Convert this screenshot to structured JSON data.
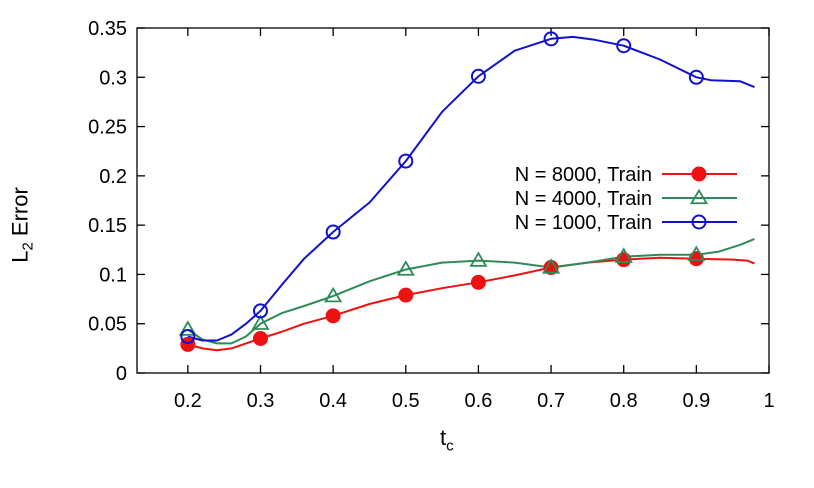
{
  "chart_data": {
    "type": "line",
    "xlabel": {
      "main": "t",
      "sub": "c"
    },
    "ylabel": {
      "main": "L",
      "sub": "2",
      "rest": " Error"
    },
    "xlim": [
      0.13,
      1.0
    ],
    "ylim": [
      0,
      0.35
    ],
    "xticks": [
      0.2,
      0.3,
      0.4,
      0.5,
      0.6,
      0.7,
      0.8,
      0.9,
      1
    ],
    "xtick_labels": [
      "0.2",
      "0.3",
      "0.4",
      "0.5",
      "0.6",
      "0.7",
      "0.8",
      "0.9",
      "1"
    ],
    "yticks": [
      0,
      0.05,
      0.1,
      0.15,
      0.2,
      0.25,
      0.3,
      0.35
    ],
    "ytick_labels": [
      "0",
      "0.05",
      "0.1",
      "0.15",
      "0.2",
      "0.25",
      "0.3",
      "0.35"
    ],
    "grid": false,
    "legend_position": "right",
    "series": [
      {
        "name": "N = 8000, Train",
        "color": "#ee1111",
        "marker": "filled-circle",
        "points": [
          [
            0.2,
            0.029
          ],
          [
            0.3,
            0.035
          ],
          [
            0.4,
            0.058
          ],
          [
            0.5,
            0.079
          ],
          [
            0.6,
            0.092
          ],
          [
            0.7,
            0.107
          ],
          [
            0.8,
            0.115
          ],
          [
            0.9,
            0.116
          ]
        ],
        "curve": [
          [
            0.2,
            0.029
          ],
          [
            0.22,
            0.025
          ],
          [
            0.24,
            0.023
          ],
          [
            0.26,
            0.025
          ],
          [
            0.28,
            0.03
          ],
          [
            0.3,
            0.035
          ],
          [
            0.33,
            0.042
          ],
          [
            0.36,
            0.05
          ],
          [
            0.4,
            0.058
          ],
          [
            0.45,
            0.07
          ],
          [
            0.5,
            0.079
          ],
          [
            0.55,
            0.086
          ],
          [
            0.6,
            0.092
          ],
          [
            0.65,
            0.099
          ],
          [
            0.7,
            0.107
          ],
          [
            0.75,
            0.112
          ],
          [
            0.8,
            0.115
          ],
          [
            0.85,
            0.117
          ],
          [
            0.9,
            0.116
          ],
          [
            0.95,
            0.115
          ],
          [
            0.97,
            0.114
          ],
          [
            0.98,
            0.111
          ]
        ]
      },
      {
        "name": "N = 4000, Train",
        "color": "#2e8b57",
        "marker": "open-triangle",
        "points": [
          [
            0.2,
            0.044
          ],
          [
            0.3,
            0.05
          ],
          [
            0.4,
            0.078
          ],
          [
            0.5,
            0.105
          ],
          [
            0.6,
            0.114
          ],
          [
            0.7,
            0.107
          ],
          [
            0.8,
            0.118
          ],
          [
            0.9,
            0.12
          ]
        ],
        "curve": [
          [
            0.2,
            0.044
          ],
          [
            0.22,
            0.034
          ],
          [
            0.24,
            0.03
          ],
          [
            0.26,
            0.03
          ],
          [
            0.28,
            0.037
          ],
          [
            0.3,
            0.05
          ],
          [
            0.33,
            0.061
          ],
          [
            0.36,
            0.068
          ],
          [
            0.4,
            0.078
          ],
          [
            0.45,
            0.093
          ],
          [
            0.5,
            0.105
          ],
          [
            0.55,
            0.112
          ],
          [
            0.6,
            0.114
          ],
          [
            0.65,
            0.112
          ],
          [
            0.7,
            0.107
          ],
          [
            0.75,
            0.112
          ],
          [
            0.8,
            0.118
          ],
          [
            0.85,
            0.12
          ],
          [
            0.9,
            0.12
          ],
          [
            0.93,
            0.123
          ],
          [
            0.96,
            0.13
          ],
          [
            0.98,
            0.136
          ]
        ]
      },
      {
        "name": "N = 1000, Train",
        "color": "#1111cc",
        "marker": "open-circle",
        "points": [
          [
            0.2,
            0.037
          ],
          [
            0.3,
            0.063
          ],
          [
            0.4,
            0.143
          ],
          [
            0.5,
            0.215
          ],
          [
            0.6,
            0.301
          ],
          [
            0.7,
            0.339
          ],
          [
            0.8,
            0.332
          ],
          [
            0.9,
            0.3
          ]
        ],
        "curve": [
          [
            0.2,
            0.037
          ],
          [
            0.22,
            0.033
          ],
          [
            0.24,
            0.033
          ],
          [
            0.26,
            0.039
          ],
          [
            0.28,
            0.05
          ],
          [
            0.3,
            0.063
          ],
          [
            0.33,
            0.09
          ],
          [
            0.36,
            0.116
          ],
          [
            0.4,
            0.143
          ],
          [
            0.45,
            0.173
          ],
          [
            0.5,
            0.215
          ],
          [
            0.55,
            0.265
          ],
          [
            0.6,
            0.301
          ],
          [
            0.65,
            0.327
          ],
          [
            0.7,
            0.339
          ],
          [
            0.73,
            0.341
          ],
          [
            0.76,
            0.338
          ],
          [
            0.8,
            0.332
          ],
          [
            0.85,
            0.318
          ],
          [
            0.9,
            0.3
          ],
          [
            0.92,
            0.297
          ],
          [
            0.96,
            0.296
          ],
          [
            0.98,
            0.29
          ]
        ]
      }
    ]
  }
}
